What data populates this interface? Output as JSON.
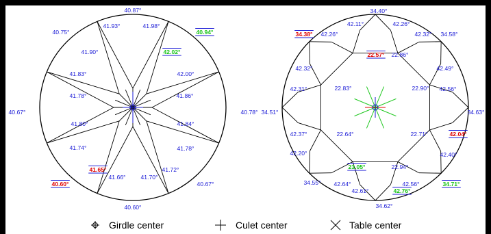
{
  "colors": {
    "normal": "#1a1ad6",
    "low": "#e00000",
    "high": "#17c317"
  },
  "crown_view": {
    "labels": [
      {
        "text": "40.87°"
      },
      {
        "text": "40.94°",
        "flag": "high"
      },
      {
        "text": "40.75°"
      },
      {
        "text": "41.93°"
      },
      {
        "text": "41.98°"
      },
      {
        "text": "41.90°"
      },
      {
        "text": "42.02°",
        "flag": "high"
      },
      {
        "text": "41.83°"
      },
      {
        "text": "42.00°"
      },
      {
        "text": "41.78°"
      },
      {
        "text": "41.86°"
      },
      {
        "text": "40.67°"
      },
      {
        "text": "40.78°"
      },
      {
        "text": "41.80°"
      },
      {
        "text": "41.84°"
      },
      {
        "text": "41.74°"
      },
      {
        "text": "41.78°"
      },
      {
        "text": "41.65°",
        "flag": "low"
      },
      {
        "text": "41.72°"
      },
      {
        "text": "41.66°"
      },
      {
        "text": "41.70°"
      },
      {
        "text": "40.60°",
        "flag": "low"
      },
      {
        "text": "40.67°"
      },
      {
        "text": "40.60°"
      }
    ]
  },
  "pavilion_view": {
    "labels": [
      {
        "text": "34.40°"
      },
      {
        "text": "42.11°"
      },
      {
        "text": "42.26°"
      },
      {
        "text": "34.38°",
        "flag": "low"
      },
      {
        "text": "42.26°"
      },
      {
        "text": "42.32°"
      },
      {
        "text": "34.58°"
      },
      {
        "text": "22.57°",
        "flag": "low"
      },
      {
        "text": "22.86°"
      },
      {
        "text": "42.32°"
      },
      {
        "text": "42.49°"
      },
      {
        "text": "42.31°"
      },
      {
        "text": "22.83°"
      },
      {
        "text": "22.90°"
      },
      {
        "text": "42.56°"
      },
      {
        "text": "34.51°"
      },
      {
        "text": "34.63°"
      },
      {
        "text": "42.37°"
      },
      {
        "text": "22.64°"
      },
      {
        "text": "22.71°"
      },
      {
        "text": "42.04°",
        "flag": "low"
      },
      {
        "text": "42.20°"
      },
      {
        "text": "42.40°"
      },
      {
        "text": "23.05°",
        "flag": "high"
      },
      {
        "text": "22.94°"
      },
      {
        "text": "34.55°"
      },
      {
        "text": "42.64°"
      },
      {
        "text": "42.56°"
      },
      {
        "text": "34.71°",
        "flag": "high"
      },
      {
        "text": "42.61°"
      },
      {
        "text": "42.76°",
        "flag": "high"
      },
      {
        "text": "34.62°"
      }
    ]
  },
  "legend": [
    {
      "icon": "girdle-center-icon",
      "label": "Girdle center"
    },
    {
      "icon": "culet-center-icon",
      "label": "Culet center"
    },
    {
      "icon": "table-center-icon",
      "label": "Table center"
    }
  ]
}
